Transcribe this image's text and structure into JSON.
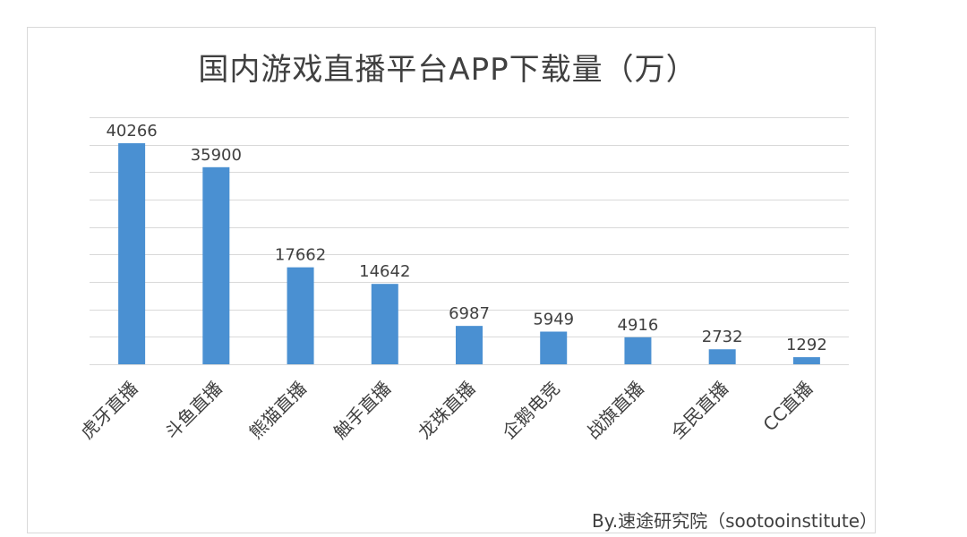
{
  "chart_data": {
    "type": "bar",
    "title": "国内游戏直播平台APP下载量（万）",
    "xlabel": "",
    "ylabel": "",
    "categories": [
      "虎牙直播",
      "斗鱼直播",
      "熊猫直播",
      "触手直播",
      "龙珠直播",
      "企鹅电竞",
      "战旗直播",
      "全民直播",
      "CC直播"
    ],
    "values": [
      40266,
      35900,
      17662,
      14642,
      6987,
      5949,
      4916,
      2732,
      1292
    ],
    "ylim": [
      0,
      45000
    ],
    "grid": true,
    "y_tick_labels_shown": false,
    "x_tick_label_rotation": -45,
    "bar_color": "#4a90d2",
    "grid_color": "#d9d9d9",
    "text_color": "#404040",
    "data_labels": true
  },
  "footer": {
    "credit": "By.速途研究院（sootooinstitute）"
  }
}
